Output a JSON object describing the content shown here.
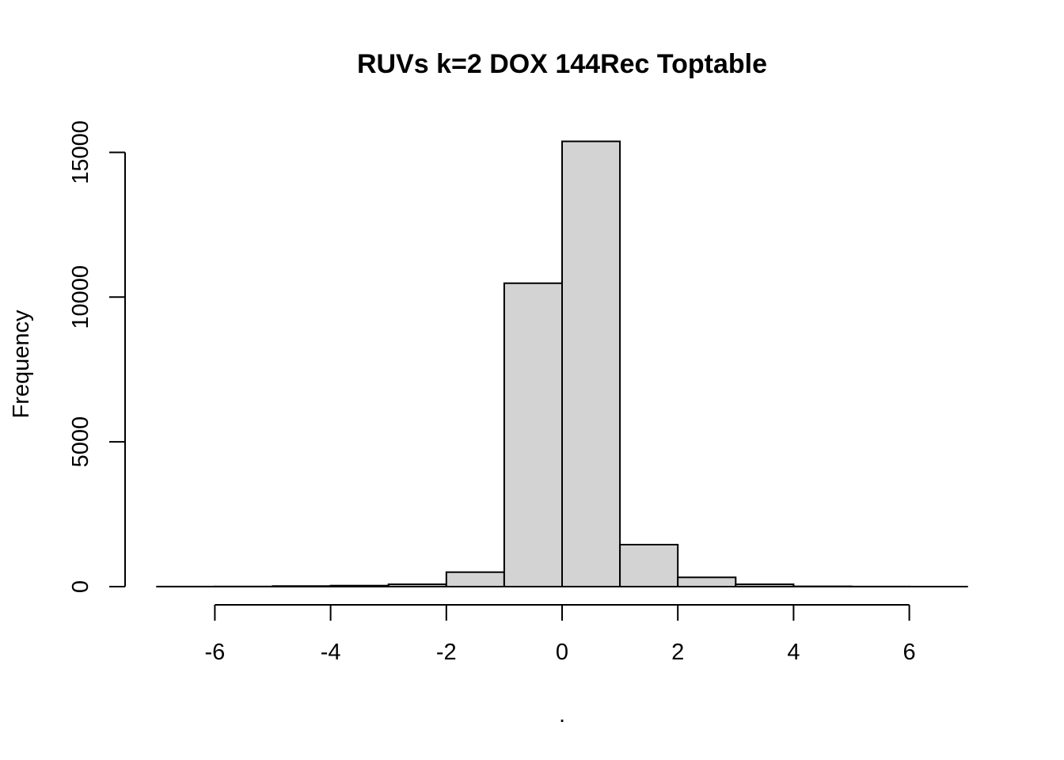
{
  "chart_data": {
    "type": "bar",
    "title": "RUVs k=2 DOX 144Rec Toptable",
    "xlabel": ".",
    "ylabel": "Frequency",
    "bins": [
      {
        "start": -7,
        "end": -6,
        "count": 2
      },
      {
        "start": -6,
        "end": -5,
        "count": 5
      },
      {
        "start": -5,
        "end": -4,
        "count": 20
      },
      {
        "start": -4,
        "end": -3,
        "count": 35
      },
      {
        "start": -3,
        "end": -2,
        "count": 80
      },
      {
        "start": -2,
        "end": -1,
        "count": 500
      },
      {
        "start": -1,
        "end": 0,
        "count": 10480
      },
      {
        "start": 0,
        "end": 1,
        "count": 15380
      },
      {
        "start": 1,
        "end": 2,
        "count": 1450
      },
      {
        "start": 2,
        "end": 3,
        "count": 320
      },
      {
        "start": 3,
        "end": 4,
        "count": 80
      },
      {
        "start": 4,
        "end": 5,
        "count": 10
      },
      {
        "start": 5,
        "end": 6,
        "count": 3
      },
      {
        "start": 6,
        "end": 7,
        "count": 1
      }
    ],
    "xlim": [
      -7,
      7
    ],
    "ylim": [
      0,
      15500
    ],
    "x_ticks": [
      -6,
      -4,
      -2,
      0,
      2,
      4,
      6
    ],
    "x_tick_labels": [
      "-6",
      "-4",
      "-2",
      "0",
      "2",
      "4",
      "6"
    ],
    "y_ticks": [
      0,
      5000,
      10000,
      15000
    ],
    "y_tick_labels": [
      "0",
      "5000",
      "10000",
      "15000"
    ],
    "bar_fill": "#d3d3d3",
    "bar_stroke": "#000000",
    "grid": false,
    "legend": "none"
  }
}
